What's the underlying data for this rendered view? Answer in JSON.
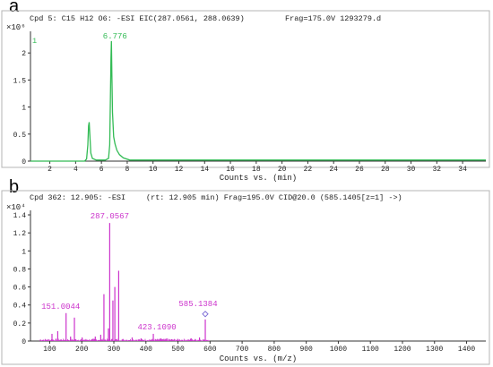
{
  "panels": [
    {
      "letter": "a",
      "header_left": "Cpd 5: C15 H12 O6: -ESI EIC(287.0561, 288.0639)",
      "header_right": "Frag=175.0V 1293279.d",
      "exponent_label": "×10⁶",
      "trace_index": "1",
      "xlabel": "Counts vs. (min)"
    },
    {
      "letter": "b",
      "header_left": "Cpd 362: 12.905: -ESI",
      "header_right": "(rt: 12.905 min) Frag=195.0V CID@20.0 (585.1405[z=1] ->)",
      "exponent_label": "×10⁴",
      "xlabel": "Counts vs. (m/z)"
    }
  ],
  "chart_data": [
    {
      "type": "line",
      "panel": "a",
      "color": "#33bb55",
      "xlabel": "Counts vs. (min)",
      "ylabel": "",
      "xlim": [
        0.5,
        35.8
      ],
      "ylim": [
        0,
        2.4
      ],
      "x_ticks": [
        2,
        4,
        6,
        8,
        10,
        12,
        14,
        16,
        18,
        20,
        22,
        24,
        26,
        28,
        30,
        32,
        34
      ],
      "y_ticks": [
        0,
        0.5,
        1,
        1.5,
        2
      ],
      "y_tick_labels": [
        "0",
        "0.5",
        "1",
        "1.5",
        "2"
      ],
      "annotations": [
        {
          "x": 6.776,
          "y": 2.2,
          "text": "6.776"
        }
      ],
      "series": [
        {
          "x": [
            0.5,
            4.7,
            4.85,
            4.95,
            5.0,
            5.05,
            5.1,
            5.18,
            5.3,
            5.6,
            6.3,
            6.55,
            6.64,
            6.7,
            6.74,
            6.776,
            6.81,
            6.86,
            6.95,
            7.05,
            7.2,
            7.4,
            7.7,
            8.2,
            35.8
          ],
          "y": [
            0.0,
            0.0,
            0.04,
            0.3,
            0.65,
            0.72,
            0.5,
            0.15,
            0.05,
            0.02,
            0.02,
            0.05,
            0.3,
            1.2,
            1.9,
            2.22,
            1.6,
            0.9,
            0.45,
            0.32,
            0.2,
            0.12,
            0.06,
            0.02,
            0.02
          ]
        }
      ]
    },
    {
      "type": "bar",
      "panel": "b",
      "color": "#cc33cc",
      "xlabel": "Counts vs. (m/z)",
      "ylabel": "",
      "xlim": [
        40,
        1460
      ],
      "ylim": [
        0,
        1.45
      ],
      "x_ticks": [
        100,
        200,
        300,
        400,
        500,
        600,
        700,
        800,
        900,
        1000,
        1100,
        1200,
        1300,
        1400
      ],
      "y_ticks": [
        0,
        0.2,
        0.4,
        0.6,
        0.8,
        1,
        1.2,
        1.4
      ],
      "y_tick_labels": [
        "0",
        "0.2",
        "0.4",
        "0.6",
        "0.8",
        "1",
        "1.2",
        "1.4"
      ],
      "precursor": {
        "x": 585.1384,
        "y": 0.3
      },
      "peaks": [
        {
          "x": 107.05,
          "y": 0.08
        },
        {
          "x": 125.02,
          "y": 0.11
        },
        {
          "x": 151.0044,
          "y": 0.31,
          "label": "151.0044"
        },
        {
          "x": 165.02,
          "y": 0.05
        },
        {
          "x": 177.02,
          "y": 0.26
        },
        {
          "x": 201.02,
          "y": 0.04
        },
        {
          "x": 242.06,
          "y": 0.05
        },
        {
          "x": 259.06,
          "y": 0.07
        },
        {
          "x": 269.05,
          "y": 0.52
        },
        {
          "x": 283.06,
          "y": 0.14
        },
        {
          "x": 287.0567,
          "y": 1.31,
          "label": "287.0567"
        },
        {
          "x": 297.04,
          "y": 0.45
        },
        {
          "x": 303.05,
          "y": 0.6
        },
        {
          "x": 315.05,
          "y": 0.78
        },
        {
          "x": 357.05,
          "y": 0.04
        },
        {
          "x": 385.07,
          "y": 0.03
        },
        {
          "x": 423.109,
          "y": 0.08,
          "label": "423.1090"
        },
        {
          "x": 447.09,
          "y": 0.03
        },
        {
          "x": 465.1,
          "y": 0.03
        },
        {
          "x": 541.1,
          "y": 0.03
        },
        {
          "x": 567.13,
          "y": 0.04
        },
        {
          "x": 585.1384,
          "y": 0.24,
          "label": "585.1384"
        }
      ]
    }
  ]
}
